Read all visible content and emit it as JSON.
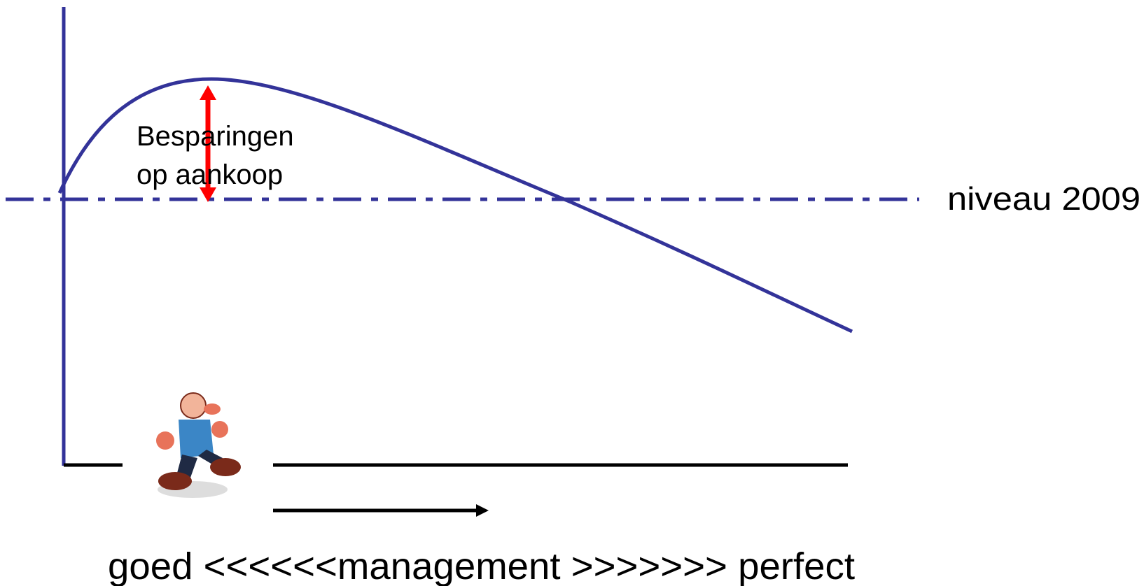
{
  "annotation": {
    "lines": [
      "Besparingen",
      "op aankoop"
    ]
  },
  "reference_label": "niveau 2009",
  "x_axis_label": "goed <<<<<<management >>>>>>> perfect"
}
